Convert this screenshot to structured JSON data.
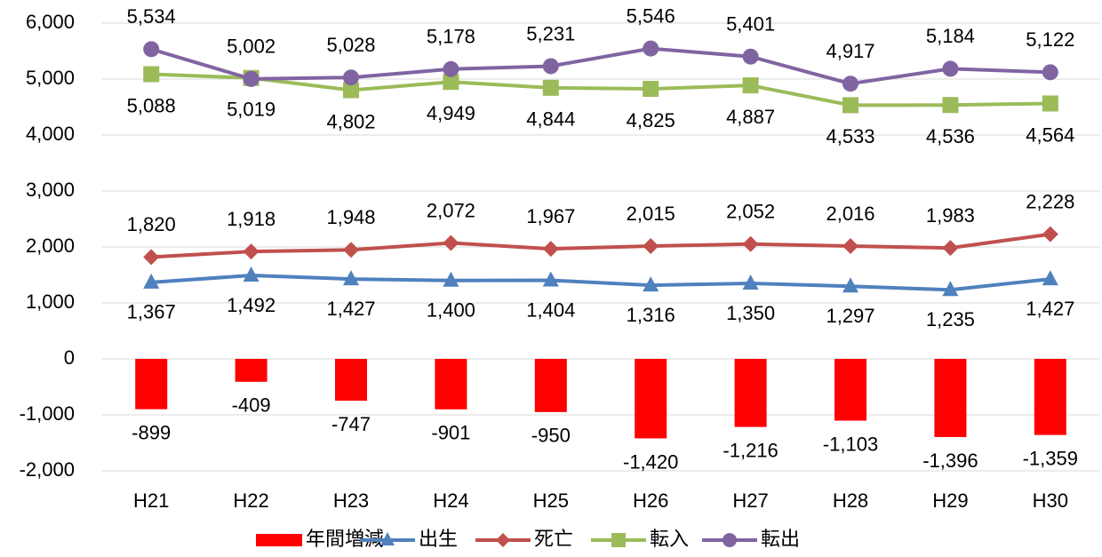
{
  "chart_data": {
    "type": "bar",
    "categories": [
      "H21",
      "H22",
      "H23",
      "H24",
      "H25",
      "H26",
      "H27",
      "H28",
      "H29",
      "H30"
    ],
    "ylim": [
      -2000,
      6000
    ],
    "yticks": [
      {
        "value": -2000,
        "label": "-2,000"
      },
      {
        "value": -1000,
        "label": "-1,000"
      },
      0,
      {
        "value": 1000,
        "label": "1,000"
      },
      {
        "value": 2000,
        "label": "2,000"
      },
      {
        "value": 3000,
        "label": "3,000"
      },
      {
        "value": 4000,
        "label": "4,000"
      },
      {
        "value": 5000,
        "label": "5,000"
      },
      {
        "value": 6000,
        "label": "6,000"
      }
    ],
    "grid": true,
    "legend": "bottom",
    "series": [
      {
        "name": "年間増減",
        "type": "bar",
        "color": "#ff0000",
        "values": [
          -899,
          -409,
          -747,
          -901,
          -950,
          -1420,
          -1216,
          -1103,
          -1396,
          -1359
        ],
        "value_labels": [
          "-899",
          "-409",
          "-747",
          "-901",
          "-950",
          "-1,420",
          "-1,216",
          "-1,103",
          "-1,396",
          "-1,359"
        ]
      },
      {
        "name": "出生",
        "type": "line",
        "marker": "triangle",
        "color": "#4f81bd",
        "values": [
          1367,
          1492,
          1427,
          1400,
          1404,
          1316,
          1350,
          1297,
          1235,
          1427
        ],
        "value_labels": [
          "1,367",
          "1,492",
          "1,427",
          "1,400",
          "1,404",
          "1,316",
          "1,350",
          "1,297",
          "1,235",
          "1,427"
        ]
      },
      {
        "name": "死亡",
        "type": "line",
        "marker": "diamond",
        "color": "#c0504d",
        "values": [
          1820,
          1918,
          1948,
          2072,
          1967,
          2015,
          2052,
          2016,
          1983,
          2228
        ],
        "value_labels": [
          "1,820",
          "1,918",
          "1,948",
          "2,072",
          "1,967",
          "2,015",
          "2,052",
          "2,016",
          "1,983",
          "2,228"
        ]
      },
      {
        "name": "転入",
        "type": "line",
        "marker": "square",
        "color": "#9bbb59",
        "values": [
          5088,
          5019,
          4802,
          4949,
          4844,
          4825,
          4887,
          4533,
          4536,
          4564
        ],
        "value_labels": [
          "5,088",
          "5,019",
          "4,802",
          "4,949",
          "4,844",
          "4,825",
          "4,887",
          "4,533",
          "4,536",
          "4,564"
        ]
      },
      {
        "name": "転出",
        "type": "line",
        "marker": "circle",
        "color": "#8064a2",
        "values": [
          5534,
          5002,
          5028,
          5178,
          5231,
          5546,
          5401,
          4917,
          5184,
          5122
        ],
        "value_labels": [
          "5,534",
          "5,002",
          "5,028",
          "5,178",
          "5,231",
          "5,546",
          "5,401",
          "4,917",
          "5,184",
          "5,122"
        ]
      }
    ]
  }
}
